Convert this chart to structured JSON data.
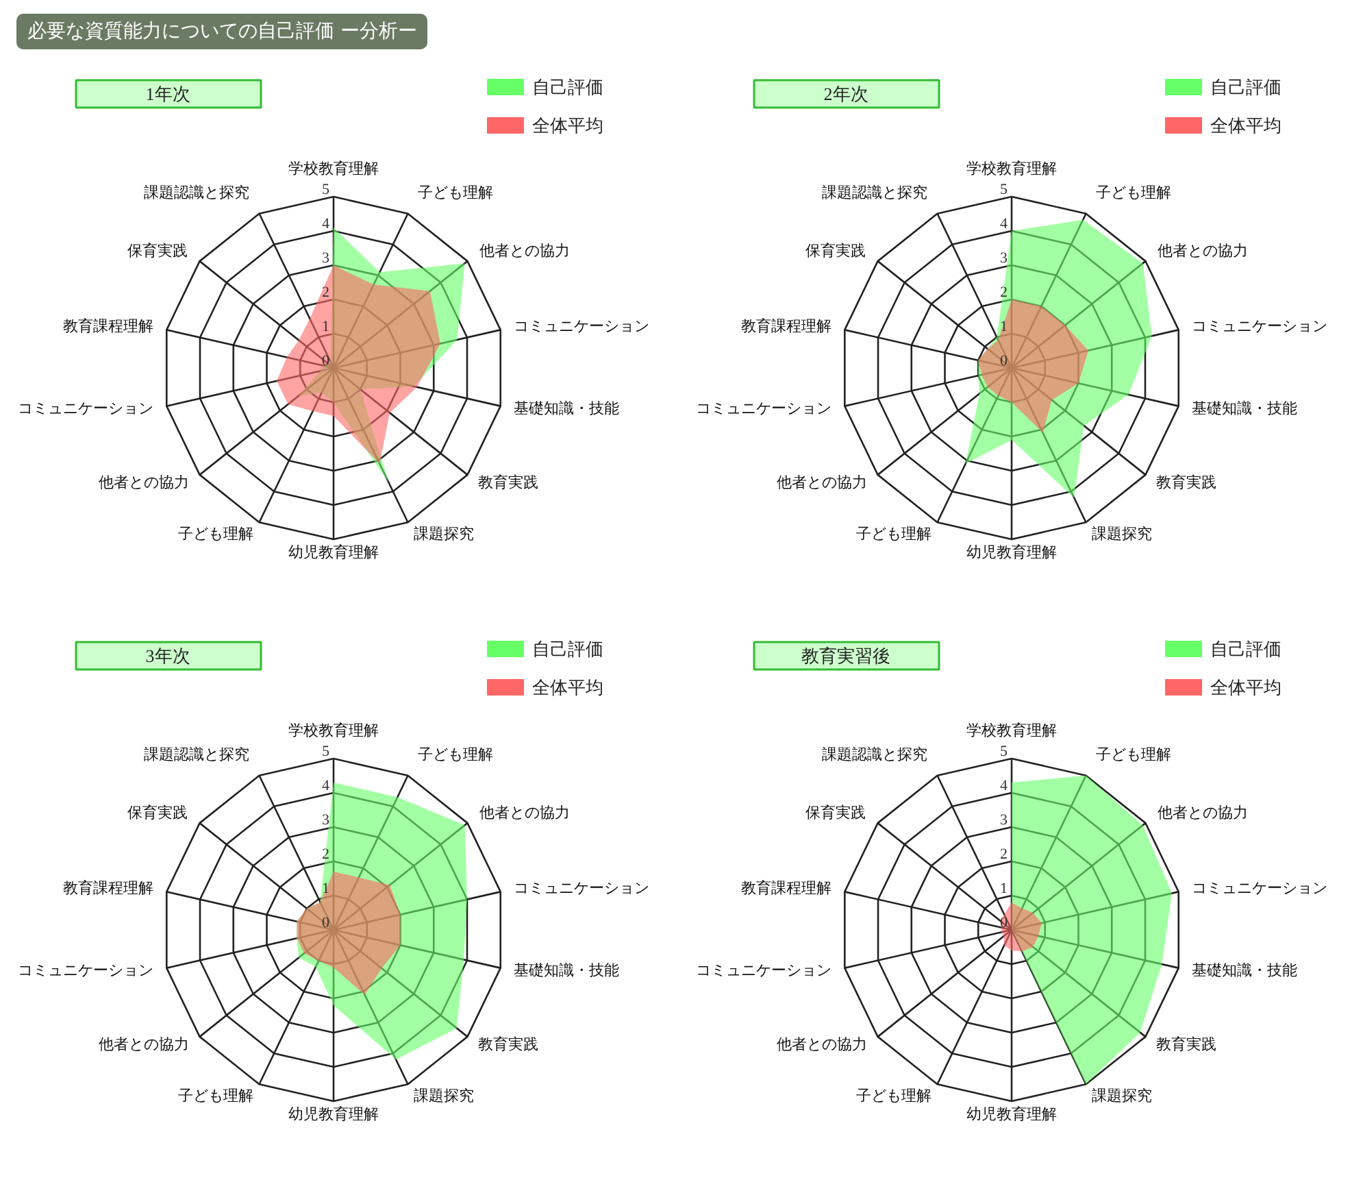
{
  "chart_data": [
    {
      "type": "radar",
      "title": "1年次",
      "annotations": [
        "必要な資質能力についての自己評価 ー分析ー"
      ],
      "categories": [
        "学校教育理解",
        "子ども理解",
        "他者との協力",
        "コミュニケーション",
        "基礎知識・技能",
        "教育実践",
        "課題探究",
        "幼児教育理解",
        "子ども理解",
        "他者との協力",
        "コミュニケーション",
        "教育課程理解",
        "保育実践",
        "課題認識と探究"
      ],
      "ylim": [
        0,
        5
      ],
      "yticks": [
        0,
        1,
        2,
        3,
        4,
        5
      ],
      "grid": true,
      "legend": "top right",
      "series": [
        {
          "name": "自己評価",
          "color": "#66ff66",
          "values": [
            4.1,
            3.1,
            4.9,
            3.7,
            2.4,
            1.0,
            3.7,
            1.0,
            0.8,
            1.3,
            0.4,
            0.3,
            0.2,
            0.2
          ]
        },
        {
          "name": "全体平均",
          "color": "#ff6666",
          "values": [
            3.0,
            2.7,
            3.6,
            3.2,
            2.5,
            2.1,
            3.1,
            1.4,
            1.4,
            1.7,
            1.7,
            1.4,
            1.3,
            1.6
          ]
        }
      ]
    },
    {
      "type": "radar",
      "title": "2年次",
      "categories": [
        "学校教育理解",
        "子ども理解",
        "他者との協力",
        "コミュニケーション",
        "基礎知識・技能",
        "教育実践",
        "課題探究",
        "幼児教育理解",
        "子ども理解",
        "他者との協力",
        "コミュニケーション",
        "教育課程理解",
        "保育実践",
        "課題認識と探究"
      ],
      "ylim": [
        0,
        5
      ],
      "yticks": [
        0,
        1,
        2,
        3,
        4,
        5
      ],
      "grid": true,
      "legend": "top right",
      "series": [
        {
          "name": "自己評価",
          "color": "#66ff66",
          "values": [
            4.0,
            4.8,
            4.9,
            4.2,
            3.5,
            2.7,
            4.2,
            2.1,
            3.1,
            1.2,
            1.0,
            1.0,
            0.9,
            1.0
          ]
        },
        {
          "name": "全体平均",
          "color": "#ff6666",
          "values": [
            2.0,
            2.0,
            2.0,
            2.3,
            2.0,
            1.5,
            2.1,
            1.0,
            0.9,
            0.9,
            0.9,
            1.0,
            0.9,
            0.9
          ]
        }
      ]
    },
    {
      "type": "radar",
      "title": "3年次",
      "categories": [
        "学校教育理解",
        "子ども理解",
        "他者との協力",
        "コミュニケーション",
        "基礎知識・技能",
        "教育実践",
        "課題探究",
        "幼児教育理解",
        "子ども理解",
        "他者との協力",
        "コミュニケーション",
        "教育課程理解",
        "保育実践",
        "課題認識と探究"
      ],
      "ylim": [
        0,
        5
      ],
      "yticks": [
        0,
        1,
        2,
        3,
        4,
        5
      ],
      "grid": true,
      "legend": "top right",
      "series": [
        {
          "name": "自己評価",
          "color": "#66ff66",
          "values": [
            4.3,
            4.3,
            4.9,
            4.0,
            3.9,
            4.6,
            4.2,
            2.2,
            1.2,
            1.3,
            1.1,
            1.1,
            1.0,
            0.9
          ]
        },
        {
          "name": "全体平均",
          "color": "#ff6666",
          "values": [
            1.7,
            1.7,
            2.1,
            2.0,
            2.0,
            1.8,
            2.1,
            1.1,
            1.0,
            1.1,
            1.1,
            1.1,
            1.0,
            0.9
          ]
        }
      ]
    },
    {
      "type": "radar",
      "title": "教育実習後",
      "categories": [
        "学校教育理解",
        "子ども理解",
        "他者との協力",
        "コミュニケーション",
        "基礎知識・技能",
        "教育実践",
        "課題探究",
        "幼児教育理解",
        "子ども理解",
        "他者との協力",
        "コミュニケーション",
        "教育課程理解",
        "保育実践",
        "課題認識と探究"
      ],
      "ylim": [
        0,
        5
      ],
      "yticks": [
        0,
        1,
        2,
        3,
        4,
        5
      ],
      "grid": true,
      "legend": "top right",
      "series": [
        {
          "name": "自己評価",
          "color": "#66ff66",
          "values": [
            4.3,
            5.0,
            4.9,
            4.8,
            4.5,
            4.8,
            5.0,
            0,
            0,
            0,
            0,
            0,
            0,
            0
          ]
        },
        {
          "name": "全体平均",
          "color": "#ff6666",
          "values": [
            0.8,
            0.7,
            0.8,
            0.9,
            0.8,
            0.8,
            0.7,
            0.6,
            0.5,
            0.3,
            0.3,
            0.3,
            0.4,
            0.5
          ]
        }
      ]
    }
  ]
}
